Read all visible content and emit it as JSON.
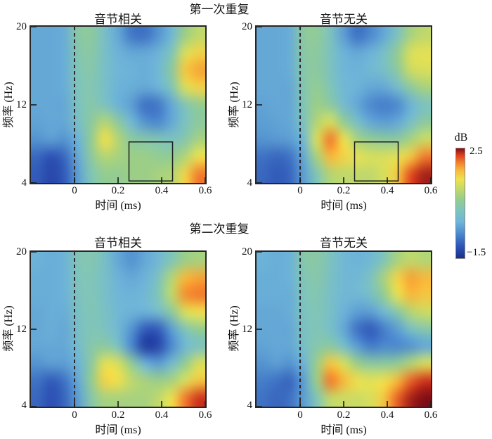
{
  "figure": {
    "group_titles": [
      "第一次重复",
      "第二次重复"
    ]
  },
  "axes": {
    "xlabel": "时间 (ms)",
    "ylabel": "频率 (Hz)",
    "x_ticks": [
      "0",
      "0.2",
      "0.4",
      "0.6"
    ],
    "y_ticks": [
      "20",
      "12",
      "4"
    ]
  },
  "colorbar": {
    "title": "dB",
    "max_label": "2.5",
    "min_label": "−1.5"
  },
  "chart_data": {
    "type": "heatmap",
    "xlabel": "时间 (ms)",
    "ylabel": "频率 (Hz)",
    "xlim": [
      -0.2,
      0.6
    ],
    "ylim": [
      4,
      20
    ],
    "x_tick_values": [
      0,
      0.2,
      0.4,
      0.6
    ],
    "y_tick_values": [
      20,
      12,
      4
    ],
    "vmin": -1.5,
    "vmax": 2.5,
    "colorbar_unit": "dB",
    "event_line_x": 0,
    "x": [
      -0.2,
      -0.133,
      -0.067,
      0,
      0.067,
      0.133,
      0.2,
      0.267,
      0.333,
      0.4,
      0.467,
      0.533,
      0.6
    ],
    "y_rows_top_to_bottom": [
      20,
      18,
      16,
      14,
      12,
      10,
      8,
      6,
      4
    ],
    "colormap": [
      {
        "t": 0.0,
        "color": "#1a2f8a"
      },
      {
        "t": 0.1,
        "color": "#2c50b4"
      },
      {
        "t": 0.22,
        "color": "#4b87cd"
      },
      {
        "t": 0.33,
        "color": "#6fb5d9"
      },
      {
        "t": 0.44,
        "color": "#7fc4bc"
      },
      {
        "t": 0.54,
        "color": "#97cd8c"
      },
      {
        "t": 0.63,
        "color": "#c2d96a"
      },
      {
        "t": 0.72,
        "color": "#eee24f"
      },
      {
        "t": 0.8,
        "color": "#f6b93c"
      },
      {
        "t": 0.87,
        "color": "#f2802e"
      },
      {
        "t": 0.94,
        "color": "#dd3d1e"
      },
      {
        "t": 1.0,
        "color": "#7e0e16"
      }
    ],
    "panels": [
      {
        "group": "第一次重复",
        "condition": "音节相关",
        "highlight_box": {
          "t0": 0.25,
          "t1": 0.45,
          "f0": 4.2,
          "f1": 8.2
        },
        "values": [
          [
            -0.3,
            -0.3,
            -0.25,
            0.45,
            0.5,
            0.1,
            -0.3,
            -0.75,
            -0.8,
            -0.5,
            -0.1,
            0.7,
            1.0
          ],
          [
            -0.3,
            -0.3,
            -0.25,
            0.35,
            0.45,
            0.1,
            -0.2,
            -0.3,
            -0.3,
            -0.2,
            0.3,
            1.2,
            1.5
          ],
          [
            -0.3,
            -0.3,
            -0.25,
            0.3,
            0.4,
            0.1,
            -0.15,
            -0.2,
            -0.25,
            -0.1,
            0.5,
            1.6,
            1.8
          ],
          [
            -0.3,
            -0.3,
            -0.25,
            0.25,
            0.35,
            0.1,
            -0.2,
            -0.25,
            -0.3,
            -0.2,
            0.3,
            1.2,
            1.5
          ],
          [
            -0.3,
            -0.3,
            -0.3,
            0.2,
            0.4,
            0.2,
            -0.2,
            -0.4,
            -0.8,
            -0.75,
            -0.3,
            0.3,
            0.6
          ],
          [
            -0.35,
            -0.3,
            -0.3,
            0.1,
            0.5,
            0.9,
            0.5,
            -0.1,
            -0.5,
            -0.6,
            -0.3,
            0.2,
            0.5
          ],
          [
            -0.5,
            -0.4,
            -0.5,
            -0.2,
            0.6,
            1.4,
            0.9,
            0.5,
            0.4,
            0.3,
            0.2,
            0.4,
            0.8
          ],
          [
            -0.9,
            -1.1,
            -0.9,
            -0.3,
            0.5,
            0.9,
            0.8,
            0.7,
            0.7,
            0.6,
            0.6,
            0.9,
            1.4
          ],
          [
            -1.0,
            -1.2,
            -1.0,
            -0.4,
            0.3,
            0.6,
            0.6,
            0.7,
            0.7,
            0.8,
            0.9,
            1.5,
            2.0
          ]
        ]
      },
      {
        "group": "第一次重复",
        "condition": "音节无关",
        "highlight_box": {
          "t0": 0.25,
          "t1": 0.45,
          "f0": 4.2,
          "f1": 8.2
        },
        "values": [
          [
            -0.3,
            -0.3,
            -0.25,
            0.5,
            0.55,
            0.2,
            -0.4,
            -0.8,
            -0.6,
            -0.3,
            0.2,
            0.8,
            1.0
          ],
          [
            -0.3,
            -0.3,
            -0.25,
            0.45,
            0.5,
            0.2,
            -0.2,
            -0.3,
            -0.2,
            0.1,
            0.6,
            1.2,
            1.3
          ],
          [
            -0.3,
            -0.3,
            -0.25,
            0.4,
            0.5,
            0.2,
            -0.15,
            -0.2,
            -0.1,
            0.1,
            0.5,
            1.1,
            1.2
          ],
          [
            -0.3,
            -0.3,
            -0.3,
            0.35,
            0.6,
            0.3,
            -0.1,
            -0.2,
            -0.3,
            -0.3,
            0,
            0.5,
            0.8
          ],
          [
            -0.35,
            -0.3,
            -0.3,
            0.3,
            0.7,
            0.5,
            0,
            -0.3,
            -0.6,
            -0.7,
            -0.6,
            -0.2,
            0.2
          ],
          [
            -0.4,
            -0.35,
            -0.3,
            0.2,
            0.9,
            1.2,
            0.6,
            0.1,
            -0.3,
            -0.4,
            -0.3,
            0.1,
            0.5
          ],
          [
            -0.5,
            -0.45,
            -0.4,
            -0.1,
            1.2,
            2.0,
            1.4,
            0.8,
            0.6,
            0.5,
            0.5,
            0.8,
            1.1
          ],
          [
            -0.8,
            -0.9,
            -0.8,
            -0.3,
            0.8,
            1.7,
            1.5,
            1.3,
            1.2,
            1.2,
            1.3,
            1.6,
            2.0
          ],
          [
            -0.9,
            -1.0,
            -0.9,
            -0.4,
            0.3,
            0.9,
            1.0,
            1.0,
            1.0,
            1.2,
            1.6,
            2.2,
            2.4
          ]
        ]
      },
      {
        "group": "第二次重复",
        "condition": "音节相关",
        "highlight_box": null,
        "values": [
          [
            -0.2,
            -0.25,
            -0.2,
            0.3,
            0.35,
            0.1,
            -0.3,
            -0.5,
            -0.3,
            -0.1,
            0.3,
            0.7,
            0.8
          ],
          [
            -0.25,
            -0.25,
            -0.2,
            0.25,
            0.3,
            0.1,
            -0.2,
            -0.3,
            -0.2,
            0.2,
            0.9,
            1.7,
            1.8
          ],
          [
            -0.25,
            -0.25,
            -0.2,
            0.2,
            0.3,
            0.1,
            -0.15,
            -0.2,
            -0.1,
            0.3,
            1.0,
            1.9,
            2.0
          ],
          [
            -0.3,
            -0.25,
            -0.25,
            0.15,
            0.3,
            0.15,
            -0.1,
            -0.2,
            -0.2,
            0,
            0.5,
            1.2,
            1.4
          ],
          [
            -0.3,
            -0.25,
            -0.3,
            0.1,
            0.3,
            0.2,
            -0.1,
            -0.5,
            -1.0,
            -1.0,
            -0.4,
            0.3,
            0.6
          ],
          [
            -0.3,
            -0.3,
            -0.3,
            0,
            0.4,
            0.5,
            0.2,
            -0.6,
            -1.3,
            -1.2,
            -0.6,
            -0.1,
            0.2
          ],
          [
            -0.5,
            -0.4,
            -0.4,
            -0.2,
            0.5,
            1.3,
            1.2,
            0.6,
            -0.2,
            -0.4,
            0,
            0.6,
            1.2
          ],
          [
            -0.8,
            -1.0,
            -0.8,
            -0.3,
            0.6,
            1.5,
            1.4,
            1.0,
            0.8,
            0.7,
            0.8,
            1.2,
            1.6
          ],
          [
            -0.9,
            -1.1,
            -0.9,
            -0.4,
            0.4,
            0.8,
            0.8,
            0.8,
            0.8,
            1.0,
            1.4,
            2.0,
            2.3
          ]
        ]
      },
      {
        "group": "第二次重复",
        "condition": "音节无关",
        "highlight_box": null,
        "values": [
          [
            -0.2,
            -0.25,
            -0.2,
            0.4,
            0.45,
            0.2,
            -0.1,
            -0.2,
            -0.1,
            0.3,
            0.8,
            1.0,
            0.9
          ],
          [
            -0.25,
            -0.25,
            -0.2,
            0.3,
            0.4,
            0.15,
            -0.1,
            -0.1,
            0.2,
            0.8,
            1.5,
            1.8,
            1.7
          ],
          [
            -0.25,
            -0.25,
            -0.25,
            0.25,
            0.35,
            0.1,
            -0.1,
            -0.1,
            0.1,
            0.6,
            1.3,
            1.7,
            1.6
          ],
          [
            -0.3,
            -0.3,
            -0.25,
            0.2,
            0.3,
            0.1,
            -0.2,
            -0.4,
            -0.4,
            -0.1,
            0.4,
            0.9,
            1.1
          ],
          [
            -0.3,
            -0.3,
            -0.3,
            0.15,
            0.3,
            0.1,
            -0.3,
            -0.8,
            -1.0,
            -0.7,
            -0.4,
            0.1,
            0.4
          ],
          [
            -0.35,
            -0.3,
            -0.3,
            0.1,
            0.4,
            0.5,
            0.1,
            -0.4,
            -0.7,
            -0.6,
            -0.6,
            -0.5,
            -0.3
          ],
          [
            -0.5,
            -0.4,
            -0.5,
            -0.2,
            0.7,
            1.6,
            1.2,
            0.7,
            0.5,
            0.5,
            0.6,
            0.9,
            1.2
          ],
          [
            -0.7,
            -0.8,
            -0.9,
            -0.4,
            0.7,
            2.0,
            1.7,
            1.4,
            1.3,
            1.4,
            1.7,
            2.1,
            2.3
          ],
          [
            -0.8,
            -0.9,
            -0.8,
            -0.4,
            0.3,
            1.0,
            1.1,
            1.1,
            1.2,
            1.6,
            2.1,
            2.4,
            2.5
          ]
        ]
      }
    ]
  }
}
